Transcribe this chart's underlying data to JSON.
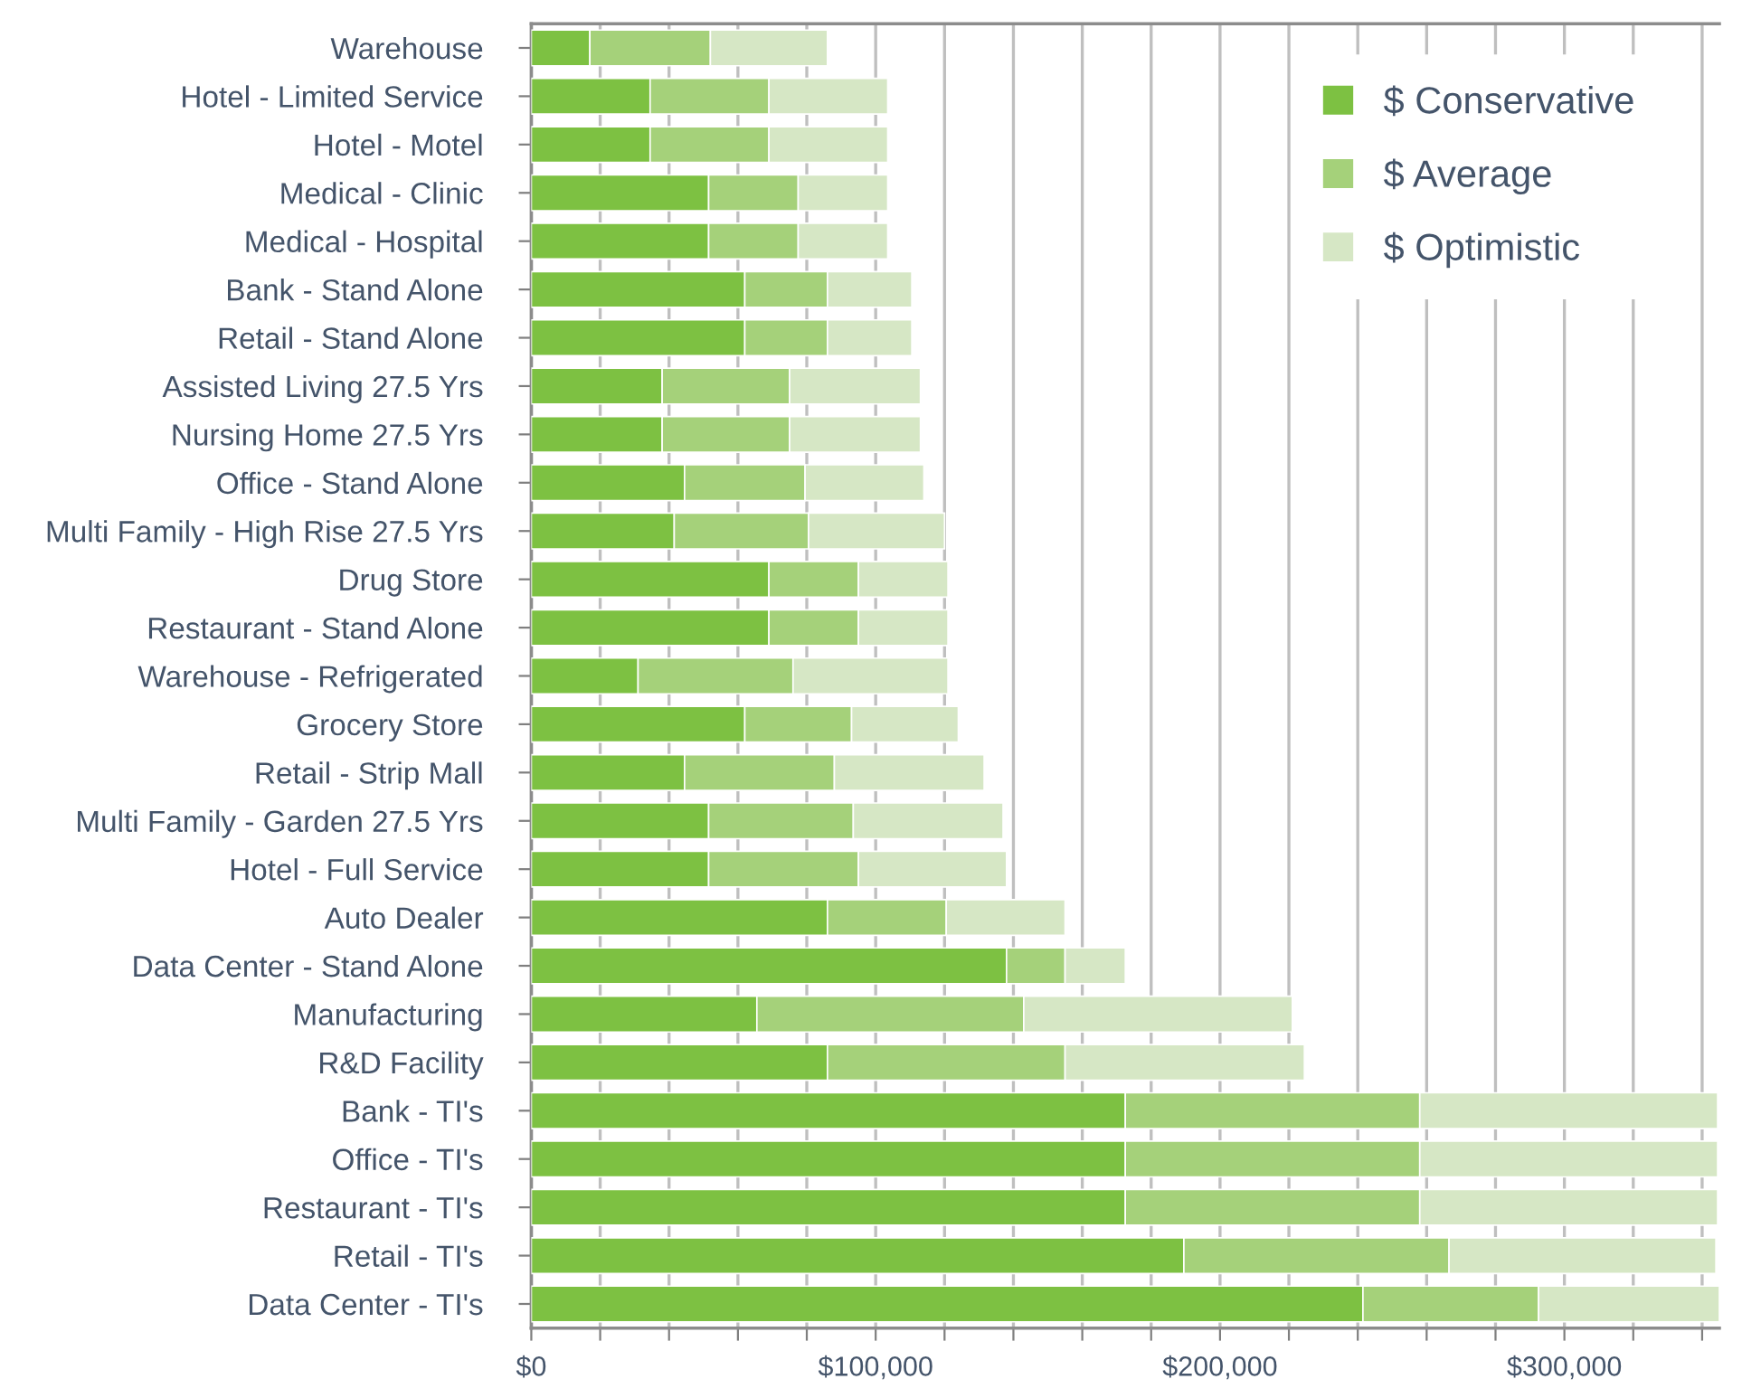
{
  "chart_data": {
    "type": "bar",
    "orientation": "horizontal",
    "stacked": true,
    "categories": [
      "Warehouse",
      "Hotel - Limited Service",
      "Hotel - Motel",
      "Medical - Clinic",
      "Medical - Hospital",
      "Bank - Stand Alone",
      "Retail - Stand Alone",
      "Assisted Living 27.5 Yrs",
      "Nursing Home 27.5 Yrs",
      "Office - Stand Alone",
      "Multi Family - High Rise 27.5 Yrs",
      "Drug Store",
      "Restaurant - Stand Alone",
      "Warehouse - Refrigerated",
      "Grocery Store",
      "Retail - Strip Mall",
      "Multi Family - Garden 27.5 Yrs",
      "Hotel - Full Service",
      "Auto Dealer",
      "Data Center - Stand Alone",
      "Manufacturing",
      "R&D Facility",
      "Bank - TI's",
      "Office - TI's",
      "Restaurant - TI's",
      "Retail - TI's",
      "Data Center - TI's"
    ],
    "series": [
      {
        "name": "$ Conservative",
        "color": "#7dc142",
        "values": [
          17000,
          34500,
          34500,
          51500,
          51500,
          62000,
          62000,
          38000,
          38000,
          44500,
          41500,
          69000,
          69000,
          31000,
          62000,
          44500,
          51500,
          51500,
          86000,
          138000,
          65500,
          86000,
          172500,
          172500,
          172500,
          189500,
          241500
        ]
      },
      {
        "name": "$ Average",
        "color": "#a5d17a",
        "values": [
          35000,
          34500,
          34500,
          26000,
          26000,
          24000,
          24000,
          37000,
          37000,
          35000,
          39000,
          26000,
          26000,
          45000,
          31000,
          43500,
          42000,
          43500,
          34500,
          17000,
          77500,
          69000,
          85500,
          85500,
          85500,
          77000,
          51000
        ]
      },
      {
        "name": "$ Optimistic",
        "color": "#d6e7c5",
        "values": [
          34000,
          34500,
          34500,
          26000,
          26000,
          24500,
          24500,
          38000,
          38000,
          34500,
          39500,
          26000,
          26000,
          45000,
          31000,
          43500,
          43500,
          43000,
          34500,
          17500,
          78000,
          69500,
          86500,
          86500,
          86500,
          77500,
          52500
        ]
      }
    ],
    "xlim": [
      0,
      345000
    ],
    "xticks": [
      {
        "value": 0,
        "label": "$0"
      },
      {
        "value": 20000,
        "label": null
      },
      {
        "value": 40000,
        "label": null
      },
      {
        "value": 60000,
        "label": null
      },
      {
        "value": 80000,
        "label": null
      },
      {
        "value": 100000,
        "label": "$100,000"
      },
      {
        "value": 120000,
        "label": null
      },
      {
        "value": 140000,
        "label": null
      },
      {
        "value": 160000,
        "label": null
      },
      {
        "value": 180000,
        "label": null
      },
      {
        "value": 200000,
        "label": "$200,000"
      },
      {
        "value": 220000,
        "label": null
      },
      {
        "value": 240000,
        "label": null
      },
      {
        "value": 260000,
        "label": null
      },
      {
        "value": 280000,
        "label": null
      },
      {
        "value": 300000,
        "label": "$300,000"
      },
      {
        "value": 320000,
        "label": null
      },
      {
        "value": 340000,
        "label": null
      }
    ],
    "grid": "x",
    "legend": "top right"
  }
}
